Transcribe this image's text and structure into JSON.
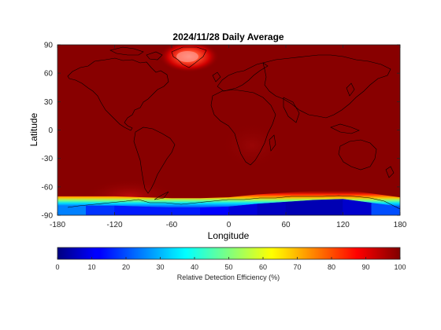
{
  "figure": {
    "title": "2024/11/28 Daily Average",
    "xlabel": "Longitude",
    "ylabel": "Latitude",
    "colorbar_label": "Relative Detection Efficiency (%)"
  },
  "chart_data": {
    "type": "heatmap",
    "title": "2024/11/28 Daily Average",
    "xlabel": "Longitude",
    "ylabel": "Latitude",
    "xlim": [
      -180,
      180
    ],
    "ylim": [
      -90,
      90
    ],
    "xticks": [
      -180,
      -120,
      -60,
      0,
      60,
      120,
      180
    ],
    "yticks": [
      90,
      60,
      30,
      0,
      -30,
      -60,
      -90
    ],
    "colorbar": {
      "label": "Relative Detection Efficiency (%)",
      "range": [
        0,
        100
      ],
      "ticks": [
        0,
        10,
        20,
        30,
        40,
        50,
        60,
        70,
        80,
        90,
        100
      ],
      "colormap": "jet",
      "orientation": "horizontal"
    },
    "field": {
      "background_value": 100,
      "features": [
        {
          "label_hidden": true,
          "lon": -40,
          "lat": 72,
          "value": 82
        },
        {
          "label_hidden": true,
          "lon": -40,
          "lat": -70,
          "value": 90
        }
      ],
      "antarctic_low_band": [
        {
          "lon": -180,
          "edge_lat": -80,
          "value": 30
        },
        {
          "lon": -150,
          "edge_lat": -80,
          "value": 20
        },
        {
          "lon": -120,
          "edge_lat": -80,
          "value": 15
        },
        {
          "lon": -90,
          "edge_lat": -81,
          "value": 15
        },
        {
          "lon": -60,
          "edge_lat": -82,
          "value": 15
        },
        {
          "lon": -30,
          "edge_lat": -82,
          "value": 15
        },
        {
          "lon": 0,
          "edge_lat": -81,
          "value": 10
        },
        {
          "lon": 30,
          "edge_lat": -78,
          "value": 8
        },
        {
          "lon": 60,
          "edge_lat": -76,
          "value": 5
        },
        {
          "lon": 90,
          "edge_lat": -74,
          "value": 5
        },
        {
          "lon": 120,
          "edge_lat": -73,
          "value": 5
        },
        {
          "lon": 150,
          "edge_lat": -77,
          "value": 10
        },
        {
          "lon": 180,
          "edge_lat": -81,
          "value": 30
        }
      ]
    }
  },
  "colors": {
    "background": "#ffffff",
    "coast": "#000000",
    "jet_dark_red": "#800000",
    "jet_dark_blue": "#000080"
  }
}
